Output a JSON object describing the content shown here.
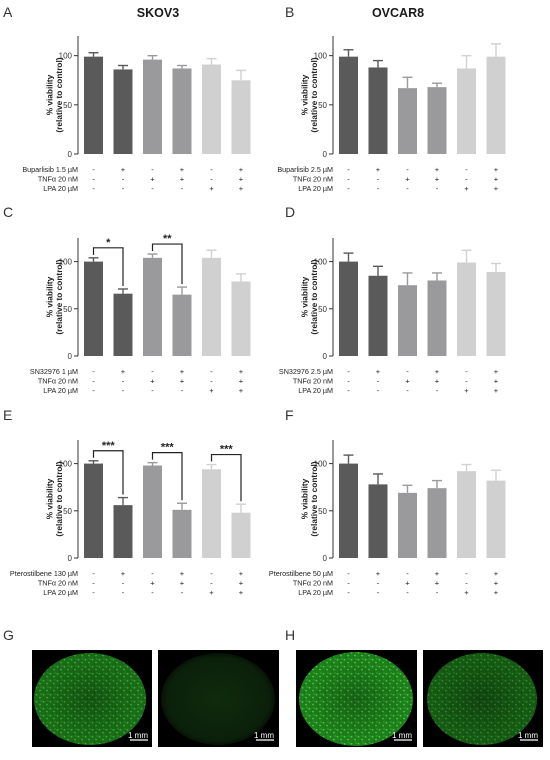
{
  "figure": {
    "column_titles": [
      "SKOV3",
      "OVCAR8"
    ],
    "panel_letters": [
      "A",
      "B",
      "C",
      "D",
      "E",
      "F",
      "G",
      "H"
    ],
    "scale_bar_label": "1 mm"
  },
  "colors": {
    "bar_shades": [
      "#5a5a5a",
      "#5a5a5a",
      "#9a9a9c",
      "#9a9a9c",
      "#d0d0d0",
      "#d0d0d0"
    ],
    "micrograph_bg": "#000000",
    "micrograph_green": "#2fa32b"
  },
  "chart_data": [
    {
      "panel": "A",
      "type": "bar",
      "title": "SKOV3",
      "ylabel": [
        "% viability",
        "(relative to control)"
      ],
      "ylim": [
        0,
        120
      ],
      "yticks": [
        0,
        50,
        100
      ],
      "values": [
        99,
        86,
        96,
        87,
        91,
        75
      ],
      "errors": [
        4,
        4,
        4,
        3,
        6,
        10
      ],
      "conditions": [
        {
          "label": "Buparlisib 1.5 µM",
          "marks": [
            "-",
            "+",
            "-",
            "+",
            "-",
            "+"
          ]
        },
        {
          "label": "TNFα 20 nM",
          "marks": [
            "-",
            "-",
            "+",
            "+",
            "-",
            "+"
          ]
        },
        {
          "label": "LPA 20 µM",
          "marks": [
            "-",
            "-",
            "-",
            "-",
            "+",
            "+"
          ]
        }
      ],
      "significance": []
    },
    {
      "panel": "B",
      "type": "bar",
      "title": "OVCAR8",
      "ylabel": [
        "% viability",
        "(relative to control)"
      ],
      "ylim": [
        0,
        120
      ],
      "yticks": [
        0,
        50,
        100
      ],
      "values": [
        99,
        88,
        67,
        68,
        87,
        99
      ],
      "errors": [
        7,
        7,
        11,
        4,
        13,
        13
      ],
      "conditions": [
        {
          "label": "Buparlisib 2.5 µM",
          "marks": [
            "-",
            "+",
            "-",
            "+",
            "-",
            "+"
          ]
        },
        {
          "label": "TNFα 20 nM",
          "marks": [
            "-",
            "-",
            "+",
            "+",
            "-",
            "+"
          ]
        },
        {
          "label": "LPA 20 µM",
          "marks": [
            "-",
            "-",
            "-",
            "-",
            "+",
            "+"
          ]
        }
      ],
      "significance": []
    },
    {
      "panel": "C",
      "type": "bar",
      "ylabel": [
        "% viability",
        "(relative to control)"
      ],
      "ylim": [
        0,
        125
      ],
      "yticks": [
        0,
        50,
        100
      ],
      "values": [
        100,
        66,
        104,
        65,
        104,
        79
      ],
      "errors": [
        4,
        5,
        4,
        8,
        8,
        8
      ],
      "conditions": [
        {
          "label": "SN32976 1 µM",
          "marks": [
            "-",
            "+",
            "-",
            "+",
            "-",
            "+"
          ]
        },
        {
          "label": "TNFα 20 nM",
          "marks": [
            "-",
            "-",
            "+",
            "+",
            "-",
            "+"
          ]
        },
        {
          "label": "LPA 20 µM",
          "marks": [
            "-",
            "-",
            "-",
            "-",
            "+",
            "+"
          ]
        }
      ],
      "significance": [
        {
          "from": 0,
          "to": 1,
          "label": "*"
        },
        {
          "from": 2,
          "to": 3,
          "label": "**"
        }
      ]
    },
    {
      "panel": "D",
      "type": "bar",
      "ylabel": [
        "% viability",
        "(relative to control)"
      ],
      "ylim": [
        0,
        125
      ],
      "yticks": [
        0,
        50,
        100
      ],
      "values": [
        100,
        85,
        75,
        80,
        99,
        89
      ],
      "errors": [
        9,
        10,
        13,
        8,
        13,
        9
      ],
      "conditions": [
        {
          "label": "SN32976 2.5 µM",
          "marks": [
            "-",
            "+",
            "-",
            "+",
            "-",
            "+"
          ]
        },
        {
          "label": "TNFα 20 nM",
          "marks": [
            "-",
            "-",
            "+",
            "+",
            "-",
            "+"
          ]
        },
        {
          "label": "LPA 20 µM",
          "marks": [
            "-",
            "-",
            "-",
            "-",
            "+",
            "+"
          ]
        }
      ],
      "significance": []
    },
    {
      "panel": "E",
      "type": "bar",
      "ylabel": [
        "% viability",
        "(relative to control)"
      ],
      "ylim": [
        0,
        125
      ],
      "yticks": [
        0,
        50,
        100
      ],
      "values": [
        100,
        56,
        98,
        51,
        94,
        48
      ],
      "errors": [
        3,
        8,
        3,
        7,
        5,
        9
      ],
      "conditions": [
        {
          "label": "Pterostilbene 130 µM",
          "marks": [
            "-",
            "+",
            "-",
            "+",
            "-",
            "+"
          ]
        },
        {
          "label": "TNFα 20 nM",
          "marks": [
            "-",
            "-",
            "+",
            "+",
            "-",
            "+"
          ]
        },
        {
          "label": "LPA 20 µM",
          "marks": [
            "-",
            "-",
            "-",
            "-",
            "+",
            "+"
          ]
        }
      ],
      "significance": [
        {
          "from": 0,
          "to": 1,
          "label": "***"
        },
        {
          "from": 2,
          "to": 3,
          "label": "***"
        },
        {
          "from": 4,
          "to": 5,
          "label": "***"
        }
      ]
    },
    {
      "panel": "F",
      "type": "bar",
      "ylabel": [
        "% viability",
        "(relative to control)"
      ],
      "ylim": [
        0,
        125
      ],
      "yticks": [
        0,
        50,
        100
      ],
      "values": [
        100,
        78,
        69,
        74,
        92,
        82
      ],
      "errors": [
        9,
        11,
        8,
        8,
        7,
        11
      ],
      "conditions": [
        {
          "label": "Pterostilbene 50 µM",
          "marks": [
            "-",
            "+",
            "-",
            "+",
            "-",
            "+"
          ]
        },
        {
          "label": "TNFα 20 nM",
          "marks": [
            "-",
            "-",
            "+",
            "+",
            "-",
            "+"
          ]
        },
        {
          "label": "LPA 20 µM",
          "marks": [
            "-",
            "-",
            "-",
            "-",
            "+",
            "+"
          ]
        }
      ],
      "significance": []
    }
  ]
}
